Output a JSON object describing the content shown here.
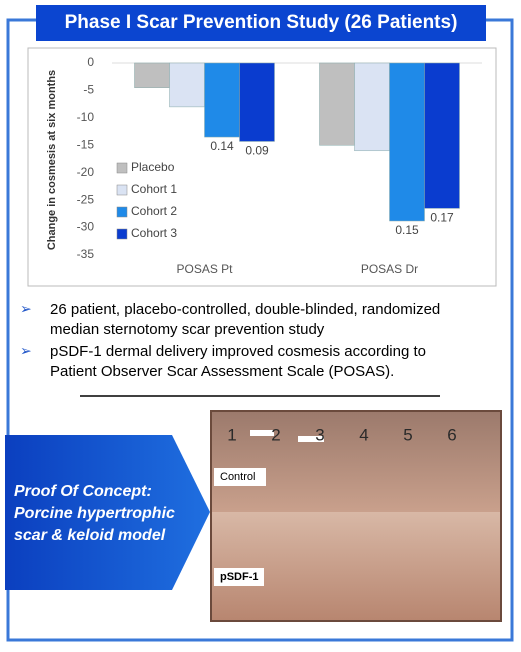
{
  "header": {
    "title": "Phase I Scar Prevention Study (26 Patients)"
  },
  "chart_data": {
    "type": "bar",
    "y_label": "Change in cosmesis at six months",
    "categories": [
      "POSAS Pt",
      "POSAS Dr"
    ],
    "series": [
      {
        "name": "Placebo",
        "color": "#bfbfbf",
        "values": [
          -4.5,
          -15
        ],
        "p_values": [
          null,
          null
        ]
      },
      {
        "name": "Cohort 1",
        "color": "#dae3f3",
        "values": [
          -8,
          -16
        ],
        "p_values": [
          null,
          null
        ]
      },
      {
        "name": "Cohort 2",
        "color": "#1f8ae8",
        "values": [
          -13.5,
          -28.8
        ],
        "p_values": [
          0.14,
          0.15
        ]
      },
      {
        "name": "Cohort 3",
        "color": "#0a3ccf",
        "values": [
          -14.3,
          -26.5
        ],
        "p_values": [
          0.09,
          0.17
        ]
      }
    ],
    "ylim": [
      -35,
      0
    ],
    "yticks": [
      0,
      -5,
      -10,
      -15,
      -20,
      -25,
      -30,
      -35
    ],
    "legend": "left"
  },
  "bullets": [
    "26 patient, placebo-controlled, double-blinded, randomized median sternotomy scar prevention study",
    "pSDF-1 dermal delivery improved cosmesis according to Patient Observer Scar Assessment Scale (POSAS)."
  ],
  "callout": {
    "lines": [
      "Proof Of Concept:",
      "Porcine hypertrophic",
      "scar & keloid model"
    ]
  },
  "photo": {
    "top_label": "Control",
    "bottom_label": "pSDF-1",
    "marks": [
      "1",
      "2",
      "3",
      "4",
      "5",
      "6"
    ]
  }
}
